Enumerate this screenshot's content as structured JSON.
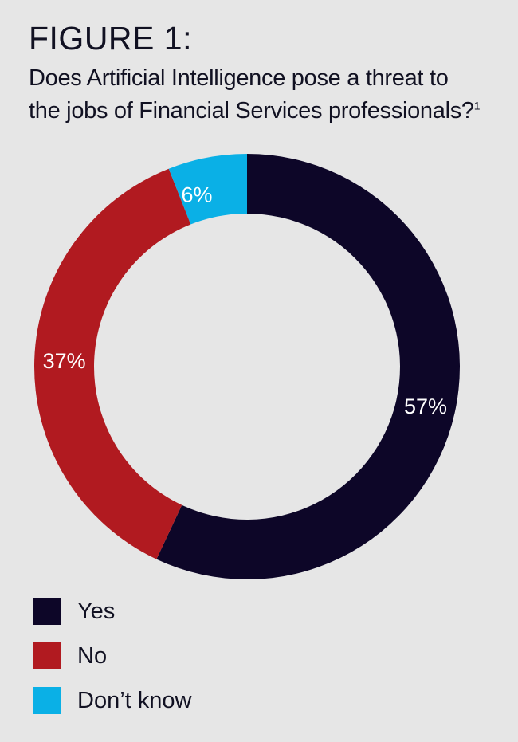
{
  "header": {
    "figure_label": "FIGURE 1:",
    "title_line1": "Does Artificial Intelligence pose a threat to",
    "title_line2": "the jobs of Financial Services professionals?",
    "footnote": "1"
  },
  "chart_data": {
    "type": "pie",
    "variant": "donut",
    "title": "Does Artificial Intelligence pose a threat to the jobs of Financial Services professionals?",
    "categories": [
      "Yes",
      "No",
      "Don’t know"
    ],
    "values": [
      57,
      37,
      6
    ],
    "unit": "%",
    "labels": [
      "57%",
      "37%",
      "6%"
    ],
    "colors": [
      "#0d0628",
      "#b11a20",
      "#0ab0e6"
    ],
    "start_angle": "12 o'clock, clockwise",
    "legend_placement": "bottom-left"
  },
  "legend": {
    "items": [
      {
        "label": "Yes",
        "color": "#0d0628"
      },
      {
        "label": "No",
        "color": "#b11a20"
      },
      {
        "label": "Don’t know",
        "color": "#0ab0e6"
      }
    ]
  }
}
